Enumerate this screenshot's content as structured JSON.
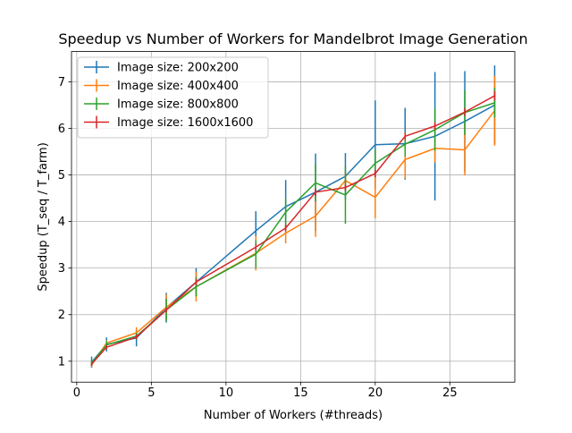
{
  "chart_data": {
    "type": "line",
    "title": "Speedup vs Number of Workers for Mandelbrot Image Generation",
    "xlabel": "Number of Workers (#threads)",
    "ylabel": "Speedup (T_seq / T_farm)",
    "xlim": [
      -0.35,
      29.35
    ],
    "ylim": [
      0.55,
      7.65
    ],
    "x_ticks": [
      0,
      5,
      10,
      15,
      20,
      25
    ],
    "y_ticks": [
      1,
      2,
      3,
      4,
      5,
      6,
      7
    ],
    "grid": true,
    "legend_position": "top-left",
    "series": [
      {
        "name": "Image size: 200x200",
        "color": "#1f77b4",
        "x": [
          1,
          2,
          4,
          6,
          8,
          12,
          14,
          16,
          18,
          20,
          22,
          24,
          26,
          28
        ],
        "y": [
          0.98,
          1.36,
          1.5,
          2.15,
          2.7,
          3.8,
          4.32,
          4.63,
          4.97,
          5.65,
          5.67,
          5.83,
          6.15,
          6.5
        ],
        "err": [
          0.12,
          0.15,
          0.18,
          0.32,
          0.3,
          0.42,
          0.57,
          0.83,
          0.5,
          0.95,
          0.77,
          1.38,
          1.08,
          0.85
        ]
      },
      {
        "name": "Image size: 400x400",
        "color": "#ff7f0e",
        "x": [
          1,
          2,
          4,
          6,
          8,
          12,
          14,
          16,
          18,
          20,
          22,
          24,
          26,
          28
        ],
        "y": [
          0.92,
          1.39,
          1.61,
          2.16,
          2.6,
          3.32,
          3.75,
          4.12,
          4.88,
          4.52,
          5.33,
          5.57,
          5.54,
          6.38
        ],
        "err": [
          0.05,
          0.06,
          0.12,
          0.28,
          0.32,
          0.37,
          0.22,
          0.45,
          0.2,
          0.45,
          0.4,
          0.3,
          0.55,
          0.75
        ]
      },
      {
        "name": "Image size: 800x800",
        "color": "#2ca02c",
        "x": [
          1,
          2,
          4,
          6,
          8,
          12,
          14,
          16,
          18,
          20,
          22,
          24,
          26,
          28
        ],
        "y": [
          0.96,
          1.35,
          1.54,
          2.1,
          2.6,
          3.3,
          4.2,
          4.83,
          4.57,
          5.25,
          5.66,
          5.97,
          6.34,
          6.55
        ],
        "err": [
          0.06,
          0.09,
          0.07,
          0.24,
          0.21,
          0.3,
          0.3,
          0.4,
          0.62,
          0.3,
          0.26,
          0.45,
          0.48,
          0.32
        ]
      },
      {
        "name": "Image size: 1600x1600",
        "color": "#d62728",
        "x": [
          1,
          2,
          4,
          6,
          8,
          12,
          14,
          16,
          18,
          20,
          22,
          24,
          26,
          28
        ],
        "y": [
          0.94,
          1.3,
          1.52,
          2.1,
          2.7,
          3.45,
          3.86,
          4.63,
          4.73,
          5.03,
          5.83,
          6.05,
          6.35,
          6.7
        ],
        "err": [
          0.04,
          0.04,
          0.05,
          0.05,
          0.07,
          0.07,
          0.07,
          0.08,
          0.08,
          0.08,
          0.08,
          0.08,
          0.09,
          0.1
        ]
      }
    ]
  }
}
